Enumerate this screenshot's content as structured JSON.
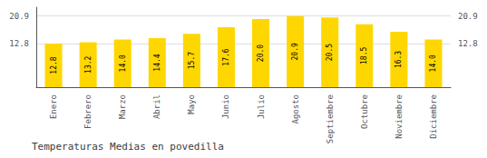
{
  "chart_data": {
    "type": "bar",
    "title": "Temperaturas Medias en povedilla",
    "categories": [
      "Enero",
      "Febrero",
      "Marzo",
      "Abril",
      "Mayo",
      "Junio",
      "Julio",
      "Agosto",
      "Septiembre",
      "Octubre",
      "Noviembre",
      "Diciembre"
    ],
    "values": [
      12.8,
      13.2,
      14.0,
      14.4,
      15.7,
      17.6,
      20.0,
      20.9,
      20.5,
      18.5,
      16.3,
      14.0
    ],
    "value_labels": [
      "12.8",
      "13.2",
      "14.0",
      "14.4",
      "15.7",
      "17.6",
      "20.0",
      "20.9",
      "20.5",
      "18.5",
      "16.3",
      "14.0"
    ],
    "data_labels": true,
    "color": "#FFD700",
    "ylim": [
      0,
      23.5
    ],
    "yticks": [
      12.8,
      20.9
    ],
    "grid": true
  }
}
